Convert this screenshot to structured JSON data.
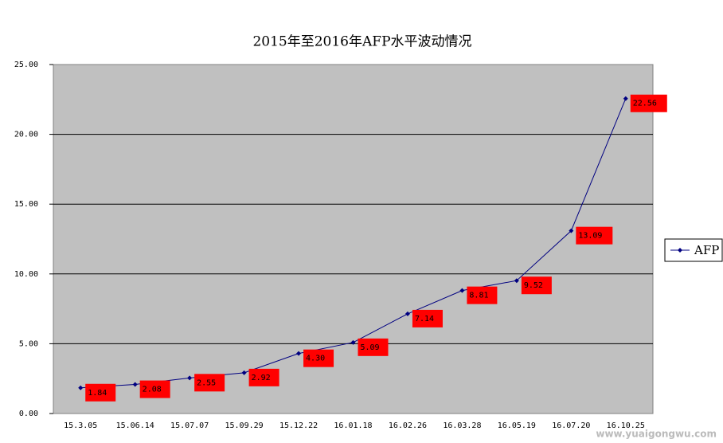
{
  "chart_data": {
    "type": "line",
    "title": "2015年至2016年AFP水平波动情况",
    "categories": [
      "15.3.05",
      "15.06.14",
      "15.07.07",
      "15.09.29",
      "15.12.22",
      "16.01.18",
      "16.02.26",
      "16.03.28",
      "16.05.19",
      "16.07.20",
      "16.10.25"
    ],
    "series": [
      {
        "name": "AFP",
        "color": "#000080",
        "values": [
          1.84,
          2.08,
          2.55,
          2.92,
          4.3,
          5.09,
          7.14,
          8.81,
          9.52,
          13.09,
          22.56
        ],
        "value_labels": [
          "1.84",
          "2.08",
          "2.55",
          "2.92",
          "4.30",
          "5.09",
          "7.14",
          "8.81",
          "9.52",
          "13.09",
          "22.56"
        ]
      }
    ],
    "ylim": [
      0,
      25
    ],
    "yticks": [
      {
        "value": 0,
        "label": "0.00"
      },
      {
        "value": 5,
        "label": "5.00"
      },
      {
        "value": 10,
        "label": "10.00"
      },
      {
        "value": 15,
        "label": "15.00"
      },
      {
        "value": 20,
        "label": "20.00"
      },
      {
        "value": 25,
        "label": "25.00"
      }
    ],
    "grid": true,
    "legend": "right",
    "watermark": "www.yuaigongwu.com"
  }
}
